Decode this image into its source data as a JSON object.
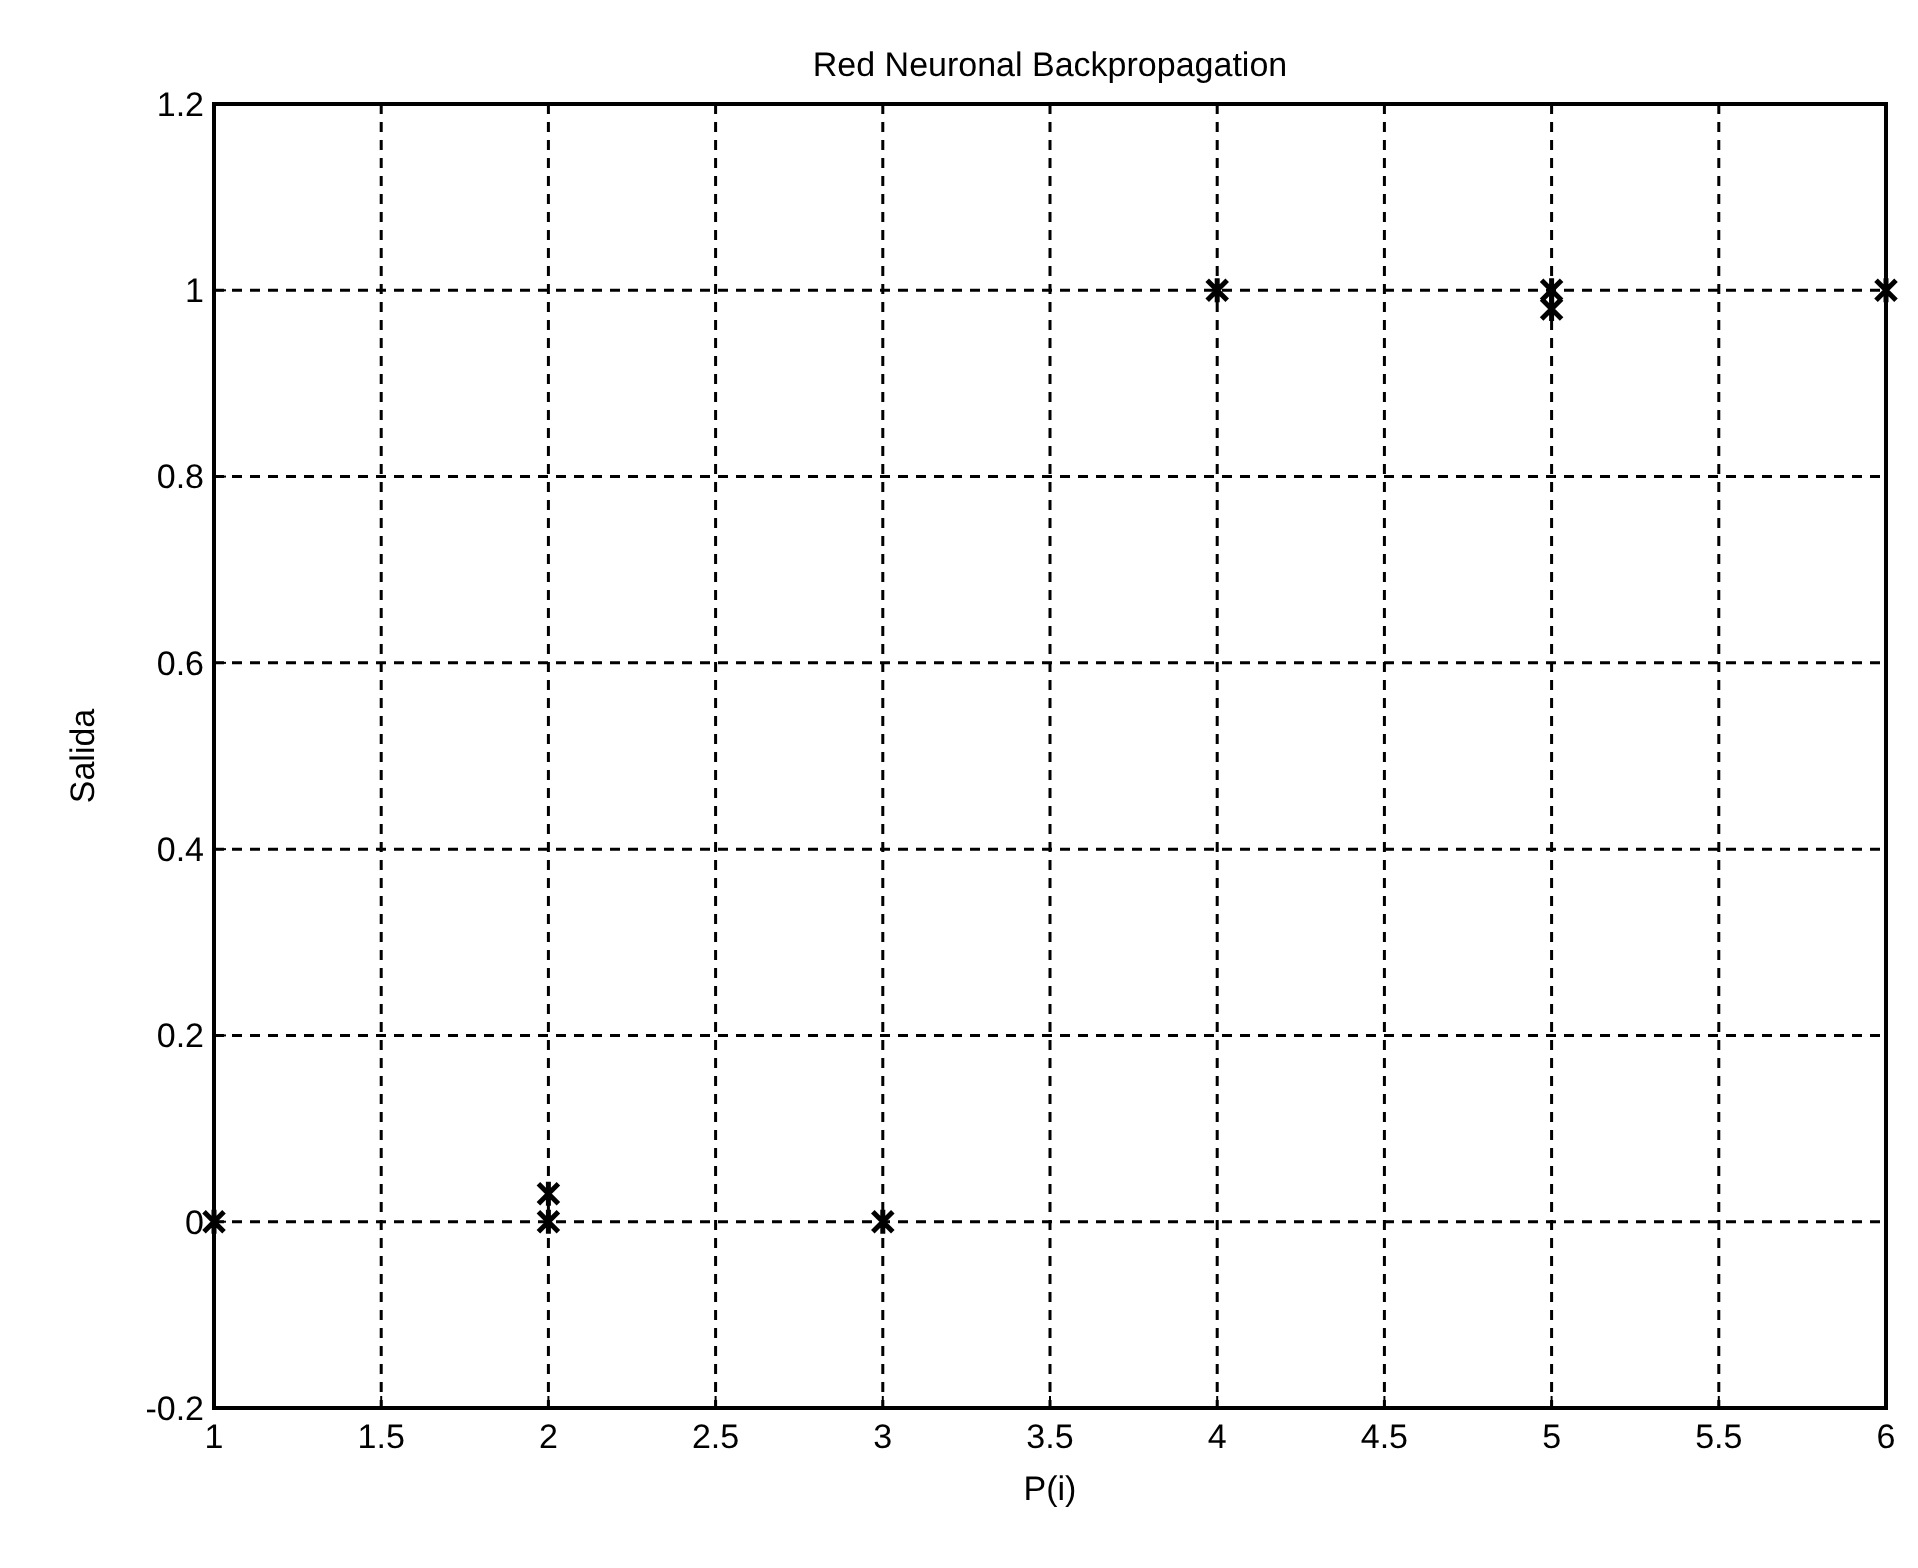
{
  "chart_data": {
    "type": "scatter",
    "title": "Red Neuronal Backpropagation",
    "xlabel": "P(i)",
    "ylabel": "Salida",
    "x": [
      1,
      2,
      2,
      3,
      4,
      5,
      5,
      6
    ],
    "series": [
      {
        "color": "#000000",
        "values": [
          0,
          0,
          0.03,
          0,
          1,
          1,
          0.98,
          1
        ]
      }
    ],
    "xlim": [
      1,
      6
    ],
    "xticks": [
      1,
      1.5,
      2,
      2.5,
      3,
      3.5,
      4,
      4.5,
      5,
      5.5,
      6
    ],
    "ylim": [
      -0.2,
      1.2
    ],
    "yticks": [
      -0.2,
      0,
      0.2,
      0.4,
      0.6,
      0.8,
      1,
      1.2
    ],
    "grid": true,
    "marker": "cross"
  }
}
